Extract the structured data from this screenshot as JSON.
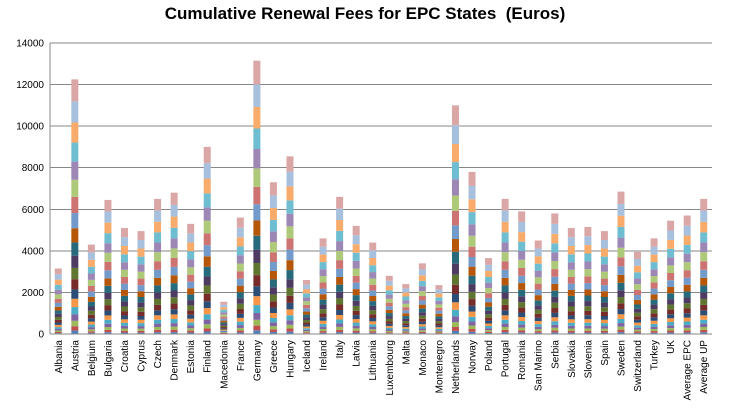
{
  "chart_data": {
    "type": "bar",
    "stacked": true,
    "title": "Cumulative Renewal Fees for EPC States  (Euros)",
    "xlabel": "",
    "ylabel": "",
    "ylim": [
      0,
      14000
    ],
    "yticks": [
      0,
      2000,
      4000,
      6000,
      8000,
      10000,
      12000,
      14000
    ],
    "ytick_labels": [
      "0",
      "2000",
      "4000",
      "6000",
      "8000",
      "10000",
      "12000",
      "14000"
    ],
    "grid": true,
    "legend": "none",
    "categories": [
      "Albania",
      "Austria",
      "Belgium",
      "Bulgaria",
      "Croatia",
      "Cyprus",
      "Czech",
      "Denmark",
      "Estonia",
      "Finland",
      "Macedonia",
      "France",
      "Germany",
      "Greece",
      "Hungary",
      "Iceland",
      "Ireland",
      "Italy",
      "Latvia",
      "Lithuania",
      "Luxembourg",
      "Malta",
      "Monaco",
      "Montenegro",
      "Netherlands",
      "Norway",
      "Poland",
      "Portugal",
      "Romania",
      "San Marino",
      "Serbia",
      "Slovakia",
      "Slovenia",
      "Spain",
      "Sweden",
      "Switzerland",
      "Turkey",
      "UK",
      "Average EPC",
      "Average UP"
    ],
    "totals": [
      3150,
      12250,
      4300,
      6450,
      5100,
      4950,
      6500,
      6800,
      5300,
      9000,
      1550,
      5600,
      13150,
      7300,
      8550,
      2600,
      4600,
      6600,
      5200,
      4400,
      2800,
      2400,
      3400,
      2350,
      11000,
      7800,
      3650,
      6500,
      5900,
      4500,
      5800,
      5100,
      5150,
      4950,
      6850,
      3950,
      4600,
      5450,
      5700,
      6500
    ],
    "series_colors": [
      "#4f81bd",
      "#c0504d",
      "#9bbb59",
      "#8064a2",
      "#4bacc6",
      "#f79646",
      "#2c4d75",
      "#772c2a",
      "#5f7530",
      "#4d3b62",
      "#276a7c",
      "#b65708",
      "#729aca",
      "#cd7371",
      "#afc97a",
      "#9c87b5",
      "#6fbdd1",
      "#f9ab6b",
      "#a7c0de",
      "#dba7a6"
    ],
    "series_weights": [
      0.35,
      0.45,
      0.55,
      0.65,
      0.75,
      0.85,
      0.95,
      1.05,
      1.15,
      1.25,
      1.35,
      1.45,
      1.55,
      1.65,
      1.75,
      1.85,
      1.95,
      2.05,
      2.15,
      2.25
    ]
  }
}
